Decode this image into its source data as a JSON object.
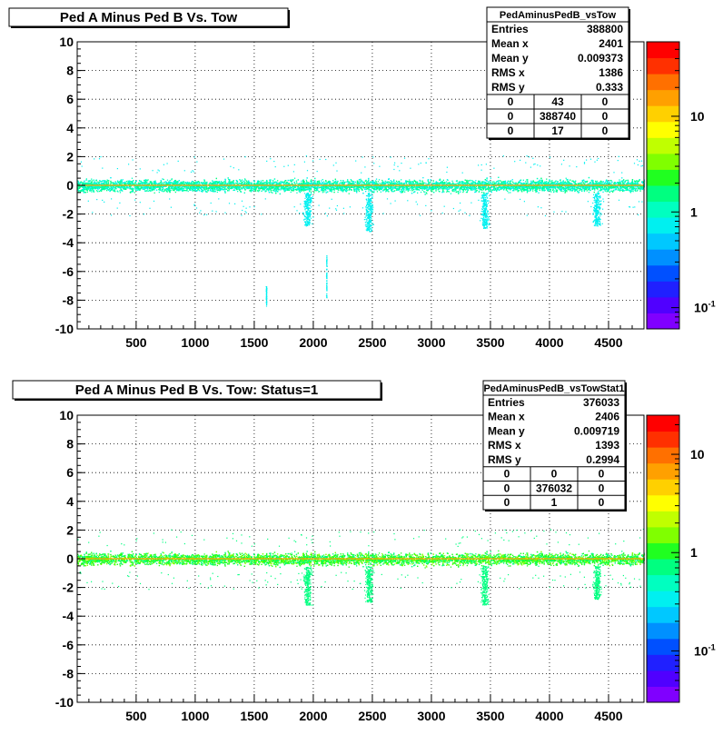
{
  "chart_data": [
    {
      "type": "heatmap",
      "title": "Ped A Minus Ped B Vs. Tow",
      "xlim": [
        1,
        4800
      ],
      "ylim": [
        -10,
        10
      ],
      "x_ticks": [
        500,
        1000,
        1500,
        2000,
        2500,
        3000,
        3500,
        4000,
        4500
      ],
      "y_ticks": [
        -10,
        -8,
        -6,
        -4,
        -2,
        0,
        2,
        4,
        6,
        8,
        10
      ],
      "z_scale": "log",
      "z_ticks": [
        {
          "label": "10",
          "value": 10
        },
        {
          "label": "1",
          "value": 1
        },
        {
          "label": "10-1",
          "value": 0.1
        }
      ],
      "z_range": [
        0.06,
        60
      ],
      "grid": true,
      "band": {
        "center": 0.0,
        "half_width": 0.7,
        "dominant_color": "#00ffe0"
      },
      "features": [
        {
          "x": 1950,
          "y_min": -2.8,
          "y_max": -0.5
        },
        {
          "x": 2470,
          "y_min": -3.2,
          "y_max": -0.5
        },
        {
          "x": 3450,
          "y_min": -3.0,
          "y_max": -0.5
        },
        {
          "x": 4400,
          "y_min": -2.8,
          "y_max": -0.5
        },
        {
          "x": 2110,
          "y_min": -7.8,
          "y_max": -4.8
        },
        {
          "x": 1600,
          "y_min": -8.4,
          "y_max": -7.0
        }
      ],
      "stats": {
        "name": "PedAminusPedB_vsTow",
        "rows": [
          {
            "label": "Entries",
            "value": "388800"
          },
          {
            "label": "Mean x",
            "value": "2401"
          },
          {
            "label": "Mean y",
            "value": "0.009373"
          },
          {
            "label": "RMS x",
            "value": "1386"
          },
          {
            "label": "RMS y",
            "value": "0.333"
          }
        ],
        "grid": [
          [
            "0",
            "43",
            "0"
          ],
          [
            "0",
            "388740",
            "0"
          ],
          [
            "0",
            "17",
            "0"
          ]
        ]
      },
      "colors": {
        "mean_line": "#ffa000"
      }
    },
    {
      "type": "heatmap",
      "title": "Ped A Minus Ped B Vs. Tow: Status=1",
      "xlim": [
        1,
        4800
      ],
      "ylim": [
        -10,
        10
      ],
      "x_ticks": [
        500,
        1000,
        1500,
        2000,
        2500,
        3000,
        3500,
        4000,
        4500
      ],
      "y_ticks": [
        -10,
        -8,
        -6,
        -4,
        -2,
        0,
        2,
        4,
        6,
        8,
        10
      ],
      "z_scale": "log",
      "z_ticks": [
        {
          "label": "10",
          "value": 10
        },
        {
          "label": "1",
          "value": 1
        },
        {
          "label": "10-1",
          "value": 0.1
        }
      ],
      "z_range": [
        0.03,
        25
      ],
      "grid": true,
      "band": {
        "center": 0.0,
        "half_width": 0.7,
        "dominant_color": "#30ff20"
      },
      "features": [
        {
          "x": 1950,
          "y_min": -3.2,
          "y_max": -0.5
        },
        {
          "x": 2470,
          "y_min": -3.0,
          "y_max": -0.5
        },
        {
          "x": 3450,
          "y_min": -3.2,
          "y_max": -0.5
        },
        {
          "x": 4400,
          "y_min": -2.8,
          "y_max": -0.5
        }
      ],
      "stats": {
        "name": "PedAminusPedB_vsTowStat1",
        "rows": [
          {
            "label": "Entries",
            "value": "376033"
          },
          {
            "label": "Mean x",
            "value": "2406"
          },
          {
            "label": "Mean y",
            "value": "0.009719"
          },
          {
            "label": "RMS x",
            "value": "1393"
          },
          {
            "label": "RMS y",
            "value": "0.2994"
          }
        ],
        "grid": [
          [
            "0",
            "0",
            "0"
          ],
          [
            "0",
            "376032",
            "0"
          ],
          [
            "0",
            "1",
            "0"
          ]
        ]
      },
      "colors": {
        "mean_line": "#ffa000"
      }
    }
  ]
}
